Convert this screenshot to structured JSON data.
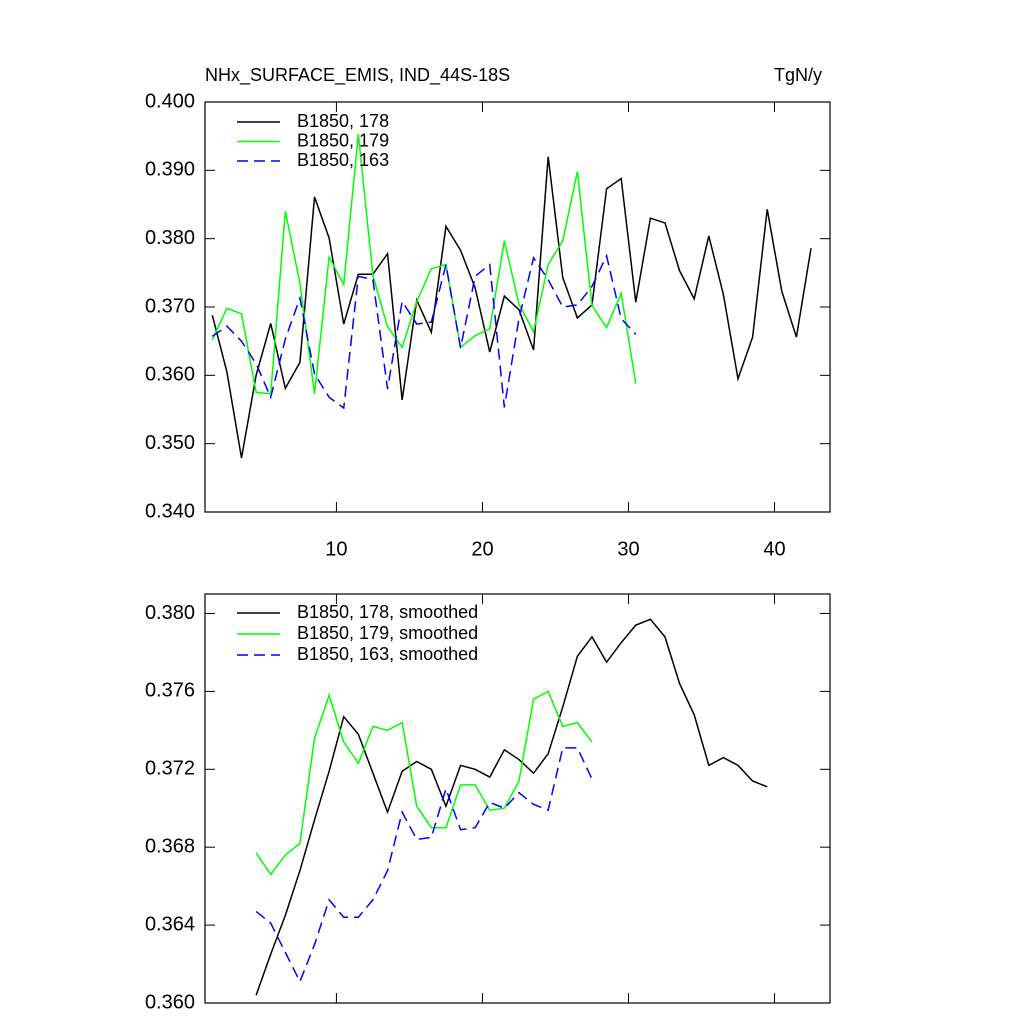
{
  "chart_data": [
    {
      "type": "line",
      "title": "NHx_SURFACE_EMIS, IND_44S-18S",
      "units": "TgN/y",
      "x": [
        1.5,
        2.5,
        3.5,
        4.5,
        5.5,
        6.5,
        7.5,
        8.5,
        9.5,
        10.5,
        11.5,
        12.5,
        13.5,
        14.5,
        15.5,
        16.5,
        17.5,
        18.5,
        19.5,
        20.5,
        21.5,
        22.5,
        23.5,
        24.5,
        25.5,
        26.5,
        27.5,
        28.5,
        29.5,
        30.5,
        31.5,
        32.5,
        33.5,
        34.5,
        35.5,
        36.5,
        37.5,
        38.5,
        39.5,
        40.5,
        41.5,
        42.5
      ],
      "xlim": [
        1,
        43.8
      ],
      "xticks": [
        10,
        20,
        30,
        40
      ],
      "ylim": [
        0.34,
        0.4
      ],
      "yticks": [
        {
          "value": 0.34,
          "label": "0.340"
        },
        {
          "value": 0.35,
          "label": "0.350"
        },
        {
          "value": 0.36,
          "label": "0.360"
        },
        {
          "value": 0.37,
          "label": "0.370"
        },
        {
          "value": 0.38,
          "label": "0.380"
        },
        {
          "value": 0.39,
          "label": "0.390"
        },
        {
          "value": 0.4,
          "label": "0.400"
        }
      ],
      "series": [
        {
          "name": "B1850, 178",
          "color": "#000000",
          "dash": false,
          "values": [
            0.3688,
            0.3605,
            0.3479,
            0.36,
            0.3676,
            0.3581,
            0.3619,
            0.3861,
            0.3801,
            0.3675,
            0.3748,
            0.3748,
            0.3778,
            0.3564,
            0.371,
            0.3663,
            0.3818,
            0.3783,
            0.3728,
            0.3634,
            0.3716,
            0.3696,
            0.3637,
            0.392,
            0.3743,
            0.3684,
            0.3703,
            0.3873,
            0.3888,
            0.3707,
            0.383,
            0.3823,
            0.3753,
            0.3712,
            0.3804,
            0.3718,
            0.3595,
            0.3656,
            0.3843,
            0.3723,
            0.3656,
            0.3786
          ]
        },
        {
          "name": "B1850, 179",
          "color": "#00ff00",
          "dash": false,
          "values": [
            0.3652,
            0.3698,
            0.369,
            0.3575,
            0.3573,
            0.384,
            0.3735,
            0.3573,
            0.3773,
            0.3733,
            0.3953,
            0.3746,
            0.3671,
            0.3641,
            0.3708,
            0.3756,
            0.3762,
            0.3641,
            0.3658,
            0.3668,
            0.3797,
            0.3704,
            0.3664,
            0.3762,
            0.3797,
            0.3898,
            0.3702,
            0.367,
            0.372,
            0.3588,
            null,
            null,
            null,
            null,
            null,
            null,
            null,
            null,
            null,
            null,
            null,
            null
          ]
        },
        {
          "name": "B1850, 163",
          "color": "#0000ff",
          "dash": true,
          "values": [
            0.3657,
            0.3672,
            0.365,
            0.3617,
            0.3568,
            0.3653,
            0.3713,
            0.3602,
            0.3568,
            0.3552,
            0.3745,
            0.374,
            0.358,
            0.3708,
            0.3675,
            0.3678,
            0.3762,
            0.364,
            0.3745,
            0.3762,
            0.3553,
            0.3683,
            0.3772,
            0.374,
            0.37,
            0.3703,
            0.373,
            0.3775,
            0.3683,
            0.366,
            null,
            null,
            null,
            null,
            null,
            null,
            null,
            null,
            null,
            null,
            null,
            null
          ]
        }
      ]
    },
    {
      "type": "line",
      "x": [
        4.5,
        5.5,
        6.5,
        7.5,
        8.5,
        9.5,
        10.5,
        11.5,
        12.5,
        13.5,
        14.5,
        15.5,
        16.5,
        17.5,
        18.5,
        19.5,
        20.5,
        21.5,
        22.5,
        23.5,
        24.5,
        25.5,
        26.5,
        27.5,
        28.5,
        29.5,
        30.5,
        31.5,
        32.5,
        33.5,
        34.5,
        35.5,
        36.5,
        37.5,
        38.5,
        39.5
      ],
      "xlim": [
        1,
        43.8
      ],
      "xticks": [
        10,
        20,
        30,
        40
      ],
      "ylim": [
        0.36,
        0.381
      ],
      "yticks": [
        {
          "value": 0.36,
          "label": "0.360"
        },
        0.364,
        0.368,
        0.372,
        0.376,
        {
          "value": 0.38,
          "label": "0.380"
        }
      ],
      "series": [
        {
          "name": "B1850, 178, smoothed",
          "color": "#000000",
          "dash": false,
          "values": [
            0.3604,
            0.3625,
            0.3645,
            0.3668,
            0.3694,
            0.3719,
            0.3747,
            0.3738,
            0.3718,
            0.3698,
            0.3719,
            0.3724,
            0.372,
            0.3701,
            0.3722,
            0.372,
            0.3716,
            0.373,
            0.3725,
            0.3718,
            0.3728,
            0.3752,
            0.3778,
            0.3788,
            0.3775,
            0.3785,
            0.3794,
            0.3797,
            0.3788,
            0.3764,
            0.3748,
            0.3722,
            0.3726,
            0.3722,
            0.3714,
            0.3711
          ]
        },
        {
          "name": "B1850, 179, smoothed",
          "color": "#00ff00",
          "dash": false,
          "values": [
            0.3677,
            0.3666,
            0.3676,
            0.3682,
            0.3736,
            0.3758,
            0.3734,
            0.3723,
            0.3742,
            0.374,
            0.3744,
            0.3701,
            0.369,
            0.369,
            0.3712,
            0.3712,
            0.3699,
            0.37,
            0.3714,
            0.3756,
            0.376,
            0.3742,
            0.3744,
            0.3734,
            null,
            null,
            null,
            null,
            null,
            null,
            null,
            null,
            null,
            null,
            null,
            null
          ]
        },
        {
          "name": "B1850, 163, smoothed",
          "color": "#0000ff",
          "dash": true,
          "values": [
            0.3647,
            0.3641,
            0.3626,
            0.3611,
            0.363,
            0.3653,
            0.3644,
            0.3644,
            0.3653,
            0.3668,
            0.3698,
            0.3684,
            0.3685,
            0.371,
            0.3689,
            0.369,
            0.3703,
            0.37,
            0.3708,
            0.3702,
            0.3699,
            0.3731,
            0.3731,
            0.3715,
            null,
            null,
            null,
            null,
            null,
            null,
            null,
            null,
            null,
            null,
            null,
            null
          ]
        }
      ]
    }
  ]
}
